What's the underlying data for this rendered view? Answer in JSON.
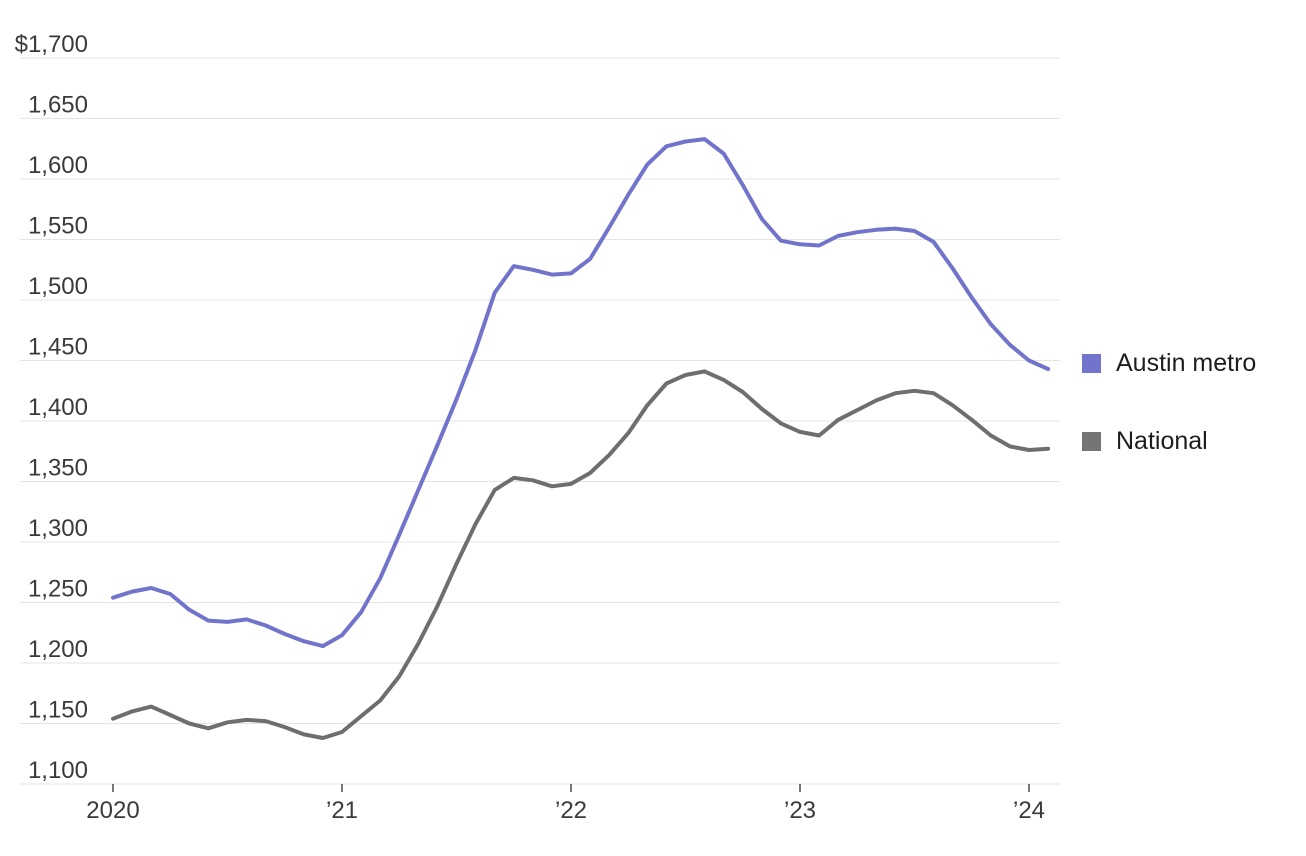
{
  "chart_data": {
    "type": "line",
    "title": "",
    "x_unit": "month",
    "x_range": [
      "2020-01",
      "2024-02"
    ],
    "months": [
      "2020-01",
      "2020-02",
      "2020-03",
      "2020-04",
      "2020-05",
      "2020-06",
      "2020-07",
      "2020-08",
      "2020-09",
      "2020-10",
      "2020-11",
      "2020-12",
      "2021-01",
      "2021-02",
      "2021-03",
      "2021-04",
      "2021-05",
      "2021-06",
      "2021-07",
      "2021-08",
      "2021-09",
      "2021-10",
      "2021-11",
      "2021-12",
      "2022-01",
      "2022-02",
      "2022-03",
      "2022-04",
      "2022-05",
      "2022-06",
      "2022-07",
      "2022-08",
      "2022-09",
      "2022-10",
      "2022-11",
      "2022-12",
      "2023-01",
      "2023-02",
      "2023-03",
      "2023-04",
      "2023-05",
      "2023-06",
      "2023-07",
      "2023-08",
      "2023-09",
      "2023-10",
      "2023-11",
      "2023-12",
      "2024-01",
      "2024-02"
    ],
    "series": [
      {
        "name": "Austin metro",
        "color": "#7274cc",
        "values": [
          1254,
          1259,
          1262,
          1257,
          1244,
          1235,
          1234,
          1236,
          1231,
          1224,
          1218,
          1214,
          1223,
          1242,
          1270,
          1306,
          1343,
          1380,
          1418,
          1459,
          1506,
          1528,
          1525,
          1521,
          1522,
          1534,
          1560,
          1587,
          1612,
          1627,
          1631,
          1633,
          1621,
          1595,
          1567,
          1549,
          1546,
          1545,
          1553,
          1556,
          1558,
          1559,
          1557,
          1548,
          1526,
          1502,
          1480,
          1463,
          1450,
          1443
        ]
      },
      {
        "name": "National",
        "color": "#6e6e6e",
        "values": [
          1154,
          1160,
          1164,
          1157,
          1150,
          1146,
          1151,
          1153,
          1152,
          1147,
          1141,
          1138,
          1143,
          1156,
          1169,
          1189,
          1216,
          1247,
          1282,
          1315,
          1343,
          1353,
          1351,
          1346,
          1348,
          1357,
          1372,
          1390,
          1413,
          1431,
          1438,
          1441,
          1434,
          1424,
          1410,
          1398,
          1391,
          1388,
          1401,
          1409,
          1417,
          1423,
          1425,
          1423,
          1413,
          1401,
          1388,
          1379,
          1376,
          1377
        ]
      }
    ],
    "ylim": [
      1100,
      1700
    ],
    "grid": "horizontal",
    "legend_position": "right",
    "y_ticks": [
      {
        "label": "$1,700",
        "value": 1700
      },
      {
        "label": "1,650",
        "value": 1650
      },
      {
        "label": "1,600",
        "value": 1600
      },
      {
        "label": "1,550",
        "value": 1550
      },
      {
        "label": "1,500",
        "value": 1500
      },
      {
        "label": "1,450",
        "value": 1450
      },
      {
        "label": "1,400",
        "value": 1400
      },
      {
        "label": "1,350",
        "value": 1350
      },
      {
        "label": "1,300",
        "value": 1300
      },
      {
        "label": "1,250",
        "value": 1250
      },
      {
        "label": "1,200",
        "value": 1200
      },
      {
        "label": "1,150",
        "value": 1150
      },
      {
        "label": "1,100",
        "value": 1100
      }
    ],
    "x_ticks": [
      {
        "label": "2020",
        "month_index": 0
      },
      {
        "label": "’21",
        "month_index": 12
      },
      {
        "label": "’22",
        "month_index": 24
      },
      {
        "label": "’23",
        "month_index": 36
      },
      {
        "label": "’24",
        "month_index": 48
      }
    ]
  },
  "legend": {
    "items": [
      {
        "label": "Austin metro",
        "color": "#7274cc"
      },
      {
        "label": "National",
        "color": "#757575"
      }
    ]
  },
  "style": {
    "gridline_color": "#e4e4e4",
    "tick_color": "#4a4a4a",
    "axis_label_color": "#3a3a3a",
    "background": "#ffffff"
  }
}
